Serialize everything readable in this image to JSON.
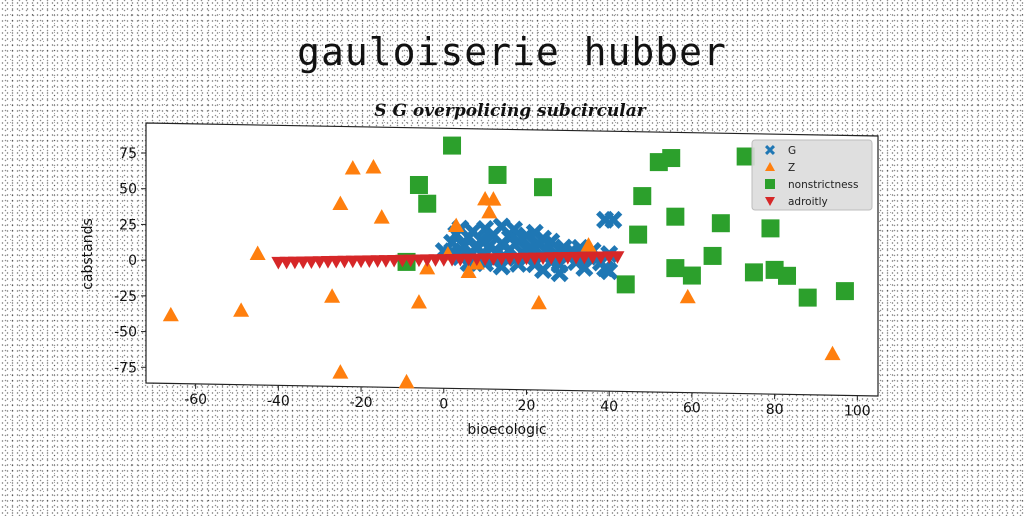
{
  "figure_title": "gauloiserie hubber",
  "chart_data": {
    "type": "scatter",
    "title": "S G overpolicing subcircular",
    "xlabel": "bioecologic",
    "ylabel": "cabstands",
    "xlim": [
      -72,
      105
    ],
    "ylim": [
      -86,
      96
    ],
    "xticks": [
      -60,
      -40,
      -20,
      0,
      20,
      40,
      60,
      80,
      100
    ],
    "yticks": [
      -75,
      -50,
      -25,
      0,
      25,
      50,
      75
    ],
    "legend_position": "top-right",
    "series": [
      {
        "name": "G",
        "marker": "x",
        "color": "#1f77b4",
        "points": [
          [
            0,
            10
          ],
          [
            2,
            16
          ],
          [
            3,
            22
          ],
          [
            4,
            26
          ],
          [
            4,
            6
          ],
          [
            5,
            14
          ],
          [
            6,
            8
          ],
          [
            6,
            20
          ],
          [
            7,
            24
          ],
          [
            8,
            12
          ],
          [
            8,
            4
          ],
          [
            9,
            18
          ],
          [
            10,
            26
          ],
          [
            10,
            8
          ],
          [
            11,
            14
          ],
          [
            12,
            22
          ],
          [
            12,
            4
          ],
          [
            13,
            10
          ],
          [
            14,
            28
          ],
          [
            14,
            16
          ],
          [
            15,
            6
          ],
          [
            16,
            20
          ],
          [
            16,
            12
          ],
          [
            17,
            26
          ],
          [
            18,
            2
          ],
          [
            18,
            18
          ],
          [
            19,
            10
          ],
          [
            20,
            22
          ],
          [
            20,
            6
          ],
          [
            21,
            14
          ],
          [
            22,
            24
          ],
          [
            22,
            2
          ],
          [
            23,
            16
          ],
          [
            24,
            8
          ],
          [
            24,
            20
          ],
          [
            25,
            12
          ],
          [
            26,
            4
          ],
          [
            26,
            18
          ],
          [
            27,
            10
          ],
          [
            28,
            2
          ],
          [
            29,
            14
          ],
          [
            30,
            8
          ],
          [
            31,
            12
          ],
          [
            32,
            4
          ],
          [
            33,
            14
          ],
          [
            34,
            0
          ],
          [
            35,
            8
          ],
          [
            36,
            12
          ],
          [
            38,
            4
          ],
          [
            39,
            34
          ],
          [
            40,
            10
          ],
          [
            41,
            34
          ],
          [
            39,
            0
          ],
          [
            40,
            -2
          ],
          [
            24,
            -2
          ],
          [
            28,
            -4
          ],
          [
            14,
            0
          ],
          [
            10,
            2
          ],
          [
            6,
            2
          ],
          [
            2,
            10
          ]
        ]
      },
      {
        "name": "Z",
        "marker": "triangle-up",
        "color": "#ff7f0e",
        "points": [
          [
            -66,
            -38
          ],
          [
            -49,
            -34
          ],
          [
            -45,
            6
          ],
          [
            -27,
            -23
          ],
          [
            -25,
            42
          ],
          [
            -25,
            -76
          ],
          [
            -22,
            67
          ],
          [
            -17,
            68
          ],
          [
            -15,
            33
          ],
          [
            -9,
            -82
          ],
          [
            -6,
            -26
          ],
          [
            -4,
            -2
          ],
          [
            1,
            8
          ],
          [
            3,
            28
          ],
          [
            6,
            -4
          ],
          [
            8,
            2
          ],
          [
            10,
            47
          ],
          [
            11,
            38
          ],
          [
            12,
            47
          ],
          [
            23,
            -25
          ],
          [
            35,
            16
          ],
          [
            59,
            -19
          ],
          [
            94,
            -57
          ]
        ]
      },
      {
        "name": "nonstrictness",
        "marker": "square",
        "color": "#2ca02c",
        "points": [
          [
            -9,
            2
          ],
          [
            -6,
            56
          ],
          [
            -4,
            43
          ],
          [
            2,
            84
          ],
          [
            13,
            64
          ],
          [
            24,
            56
          ],
          [
            44,
            -11
          ],
          [
            47,
            24
          ],
          [
            48,
            51
          ],
          [
            52,
            75
          ],
          [
            55,
            78
          ],
          [
            56,
            1
          ],
          [
            56,
            37
          ],
          [
            60,
            -4
          ],
          [
            65,
            10
          ],
          [
            67,
            33
          ],
          [
            73,
            80
          ],
          [
            75,
            -1
          ],
          [
            79,
            30
          ],
          [
            80,
            1
          ],
          [
            83,
            -3
          ],
          [
            88,
            -18
          ],
          [
            97,
            -13
          ]
        ]
      },
      {
        "name": "adroitly",
        "marker": "triangle-down",
        "color": "#d62728",
        "points": [
          [
            -40,
            0
          ],
          [
            -38,
            0.2
          ],
          [
            -36,
            0.4
          ],
          [
            -34,
            0.6
          ],
          [
            -32,
            0.8
          ],
          [
            -30,
            1
          ],
          [
            -28,
            1.2
          ],
          [
            -26,
            1.4
          ],
          [
            -24,
            1.6
          ],
          [
            -22,
            1.8
          ],
          [
            -20,
            2
          ],
          [
            -18,
            2.2
          ],
          [
            -16,
            2.4
          ],
          [
            -14,
            2.6
          ],
          [
            -12,
            2.8
          ],
          [
            -10,
            3
          ],
          [
            -8,
            3.2
          ],
          [
            -6,
            3.4
          ],
          [
            -4,
            3.6
          ],
          [
            -2,
            3.8
          ],
          [
            0,
            4
          ],
          [
            2,
            4.2
          ],
          [
            4,
            4.4
          ],
          [
            6,
            4.6
          ],
          [
            8,
            4.8
          ],
          [
            10,
            5
          ],
          [
            12,
            5.2
          ],
          [
            14,
            5.4
          ],
          [
            16,
            5.6
          ],
          [
            18,
            5.8
          ],
          [
            20,
            6
          ],
          [
            22,
            6.2
          ],
          [
            24,
            6.4
          ],
          [
            26,
            6.6
          ],
          [
            28,
            6.8
          ],
          [
            30,
            7
          ],
          [
            32,
            7.2
          ],
          [
            34,
            7.4
          ],
          [
            36,
            7.6
          ],
          [
            38,
            7.8
          ],
          [
            40,
            8
          ],
          [
            42,
            8.2
          ]
        ]
      }
    ]
  }
}
